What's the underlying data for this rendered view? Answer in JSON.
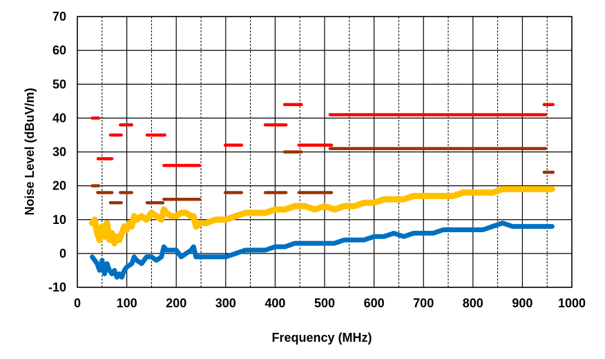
{
  "chart_data": {
    "type": "line",
    "title": "",
    "xlabel": "Frequency (MHz)",
    "ylabel": "Noise Level (dBuV/m)",
    "xlim": [
      0,
      1000
    ],
    "ylim": [
      -10,
      70
    ],
    "xticks": [
      0,
      100,
      200,
      300,
      400,
      500,
      600,
      700,
      800,
      900,
      1000
    ],
    "yticks": [
      -10,
      0,
      10,
      20,
      30,
      40,
      50,
      60,
      70
    ],
    "grid": "major solid, minor dashed vertical at 50 MHz",
    "legend": "none",
    "colors": {
      "red_limit": "#ff0000",
      "brown_limit": "#993300",
      "yellow_trace": "#ffc000",
      "blue_trace": "#0070c0"
    },
    "limit_segments": [
      {
        "color": "#ff0000",
        "segments": [
          [
            30,
            43,
            40
          ],
          [
            42,
            70,
            28
          ],
          [
            67,
            89,
            35
          ],
          [
            87,
            110,
            38
          ],
          [
            141,
            177,
            35
          ],
          [
            175,
            247,
            26
          ],
          [
            299,
            332,
            32
          ],
          [
            380,
            422,
            38
          ],
          [
            419,
            453,
            44
          ],
          [
            448,
            514,
            32
          ],
          [
            511,
            947,
            41
          ],
          [
            944,
            962,
            44
          ]
        ]
      },
      {
        "color": "#993300",
        "segments": [
          [
            30,
            43,
            20
          ],
          [
            41,
            70,
            18
          ],
          [
            67,
            89,
            15
          ],
          [
            87,
            110,
            18
          ],
          [
            141,
            173,
            15
          ],
          [
            175,
            247,
            16
          ],
          [
            299,
            332,
            18
          ],
          [
            380,
            422,
            18
          ],
          [
            419,
            453,
            30
          ],
          [
            448,
            514,
            18
          ],
          [
            511,
            947,
            31
          ],
          [
            944,
            962,
            24
          ]
        ]
      }
    ],
    "series": [
      {
        "color": "#ffc000",
        "points": [
          [
            30,
            9
          ],
          [
            35,
            10
          ],
          [
            40,
            6
          ],
          [
            45,
            4
          ],
          [
            50,
            8
          ],
          [
            55,
            5
          ],
          [
            60,
            9
          ],
          [
            65,
            4
          ],
          [
            70,
            6
          ],
          [
            75,
            3
          ],
          [
            80,
            5
          ],
          [
            85,
            4
          ],
          [
            90,
            6
          ],
          [
            95,
            8
          ],
          [
            100,
            7
          ],
          [
            105,
            9
          ],
          [
            110,
            8
          ],
          [
            115,
            11
          ],
          [
            120,
            10
          ],
          [
            130,
            11
          ],
          [
            140,
            10
          ],
          [
            150,
            12
          ],
          [
            160,
            11
          ],
          [
            170,
            10
          ],
          [
            175,
            13
          ],
          [
            180,
            12
          ],
          [
            190,
            11
          ],
          [
            200,
            11
          ],
          [
            210,
            12
          ],
          [
            220,
            12
          ],
          [
            230,
            11
          ],
          [
            235,
            11
          ],
          [
            240,
            8
          ],
          [
            250,
            9
          ],
          [
            260,
            9
          ],
          [
            280,
            10
          ],
          [
            300,
            10
          ],
          [
            320,
            11
          ],
          [
            340,
            12
          ],
          [
            360,
            12
          ],
          [
            380,
            12
          ],
          [
            400,
            13
          ],
          [
            420,
            13
          ],
          [
            440,
            14
          ],
          [
            460,
            14
          ],
          [
            480,
            13
          ],
          [
            500,
            14
          ],
          [
            520,
            13
          ],
          [
            540,
            14
          ],
          [
            560,
            14
          ],
          [
            580,
            15
          ],
          [
            600,
            15
          ],
          [
            620,
            16
          ],
          [
            640,
            16
          ],
          [
            660,
            16
          ],
          [
            680,
            17
          ],
          [
            700,
            17
          ],
          [
            720,
            17
          ],
          [
            740,
            17
          ],
          [
            760,
            17
          ],
          [
            780,
            18
          ],
          [
            800,
            18
          ],
          [
            820,
            18
          ],
          [
            840,
            18
          ],
          [
            860,
            19
          ],
          [
            880,
            19
          ],
          [
            900,
            19
          ],
          [
            920,
            19
          ],
          [
            940,
            19
          ],
          [
            960,
            19
          ]
        ]
      },
      {
        "color": "#0070c0",
        "points": [
          [
            30,
            -1
          ],
          [
            35,
            -2
          ],
          [
            40,
            -3
          ],
          [
            45,
            -5
          ],
          [
            50,
            -2
          ],
          [
            55,
            -6
          ],
          [
            60,
            -3
          ],
          [
            65,
            -5
          ],
          [
            70,
            -6
          ],
          [
            75,
            -5
          ],
          [
            80,
            -7
          ],
          [
            85,
            -6
          ],
          [
            90,
            -7
          ],
          [
            95,
            -5
          ],
          [
            100,
            -4
          ],
          [
            110,
            -3
          ],
          [
            115,
            -1
          ],
          [
            120,
            -2
          ],
          [
            130,
            -3
          ],
          [
            140,
            -1
          ],
          [
            150,
            -1
          ],
          [
            160,
            -2
          ],
          [
            170,
            -1
          ],
          [
            175,
            2
          ],
          [
            180,
            1
          ],
          [
            190,
            1
          ],
          [
            200,
            1
          ],
          [
            210,
            -1
          ],
          [
            220,
            0
          ],
          [
            230,
            1
          ],
          [
            235,
            2
          ],
          [
            240,
            -1
          ],
          [
            250,
            -1
          ],
          [
            270,
            -1
          ],
          [
            290,
            -1
          ],
          [
            300,
            -1
          ],
          [
            320,
            0
          ],
          [
            340,
            1
          ],
          [
            360,
            1
          ],
          [
            380,
            1
          ],
          [
            400,
            2
          ],
          [
            420,
            2
          ],
          [
            440,
            3
          ],
          [
            460,
            3
          ],
          [
            480,
            3
          ],
          [
            500,
            3
          ],
          [
            520,
            3
          ],
          [
            540,
            4
          ],
          [
            560,
            4
          ],
          [
            580,
            4
          ],
          [
            600,
            5
          ],
          [
            620,
            5
          ],
          [
            640,
            6
          ],
          [
            660,
            5
          ],
          [
            680,
            6
          ],
          [
            700,
            6
          ],
          [
            720,
            6
          ],
          [
            740,
            7
          ],
          [
            760,
            7
          ],
          [
            780,
            7
          ],
          [
            800,
            7
          ],
          [
            820,
            7
          ],
          [
            840,
            8
          ],
          [
            860,
            9
          ],
          [
            880,
            8
          ],
          [
            900,
            8
          ],
          [
            920,
            8
          ],
          [
            940,
            8
          ],
          [
            960,
            8
          ]
        ]
      }
    ]
  }
}
